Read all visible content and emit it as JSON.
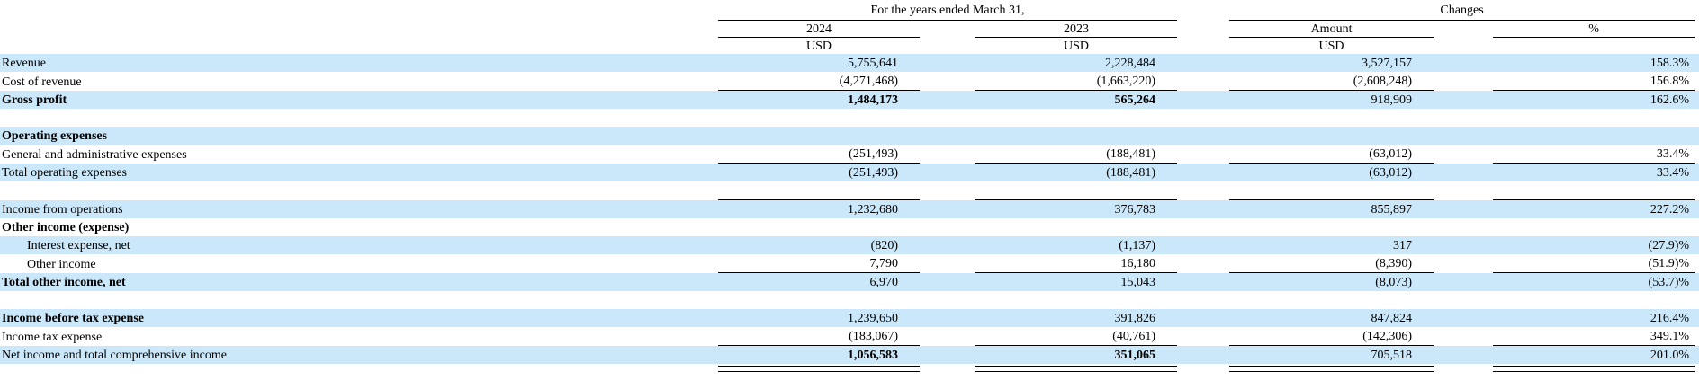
{
  "table": {
    "stripe_color": "#cbe8fa",
    "header": {
      "years_group": "For the years ended March 31,",
      "changes_group": "Changes",
      "col_2024": "2024",
      "col_2023": "2023",
      "col_amount": "Amount",
      "col_percent": "%",
      "currency_2024": "USD",
      "currency_2023": "USD",
      "currency_amount": "USD"
    },
    "rows": [
      {
        "label": "Revenue",
        "v2024": "5,755,641",
        "v2023": "2,228,484",
        "amount": "3,527,157",
        "pct": "158.3%",
        "stripe": true,
        "bold_label": false,
        "bold_values": false,
        "indent": false,
        "rule_below": false,
        "double_below": false
      },
      {
        "label": "Cost of revenue",
        "v2024": "(4,271,468)",
        "v2023": "(1,663,220)",
        "amount": "(2,608,248)",
        "pct": "156.8%",
        "stripe": false,
        "bold_label": false,
        "bold_values": false,
        "indent": false,
        "rule_below": true,
        "double_below": false
      },
      {
        "label": "Gross profit",
        "v2024": "1,484,173",
        "v2023": "565,264",
        "amount": "918,909",
        "pct": "162.6%",
        "stripe": true,
        "bold_label": true,
        "bold_values": true,
        "indent": false,
        "rule_below": false,
        "double_below": false
      },
      {
        "label": "",
        "v2024": "",
        "v2023": "",
        "amount": "",
        "pct": "",
        "stripe": false,
        "bold_label": false,
        "bold_values": false,
        "indent": false,
        "rule_below": false,
        "double_below": false
      },
      {
        "label": "Operating expenses",
        "v2024": "",
        "v2023": "",
        "amount": "",
        "pct": "",
        "stripe": true,
        "bold_label": true,
        "bold_values": false,
        "indent": false,
        "rule_below": false,
        "double_below": false
      },
      {
        "label": "General and administrative expenses",
        "v2024": "(251,493)",
        "v2023": "(188,481)",
        "amount": "(63,012)",
        "pct": "33.4%",
        "stripe": false,
        "bold_label": false,
        "bold_values": false,
        "indent": false,
        "rule_below": true,
        "double_below": false
      },
      {
        "label": "Total operating expenses",
        "v2024": "(251,493)",
        "v2023": "(188,481)",
        "amount": "(63,012)",
        "pct": "33.4%",
        "stripe": true,
        "bold_label": false,
        "bold_values": false,
        "indent": false,
        "rule_below": false,
        "double_below": false
      },
      {
        "label": "",
        "v2024": "",
        "v2023": "",
        "amount": "",
        "pct": "",
        "stripe": false,
        "bold_label": false,
        "bold_values": false,
        "indent": false,
        "rule_below": true,
        "double_below": false
      },
      {
        "label": "Income from operations",
        "v2024": "1,232,680",
        "v2023": "376,783",
        "amount": "855,897",
        "pct": "227.2%",
        "stripe": true,
        "bold_label": false,
        "bold_values": false,
        "indent": false,
        "rule_below": false,
        "double_below": false
      },
      {
        "label": "Other income (expense)",
        "v2024": "",
        "v2023": "",
        "amount": "",
        "pct": "",
        "stripe": false,
        "bold_label": true,
        "bold_values": false,
        "indent": false,
        "rule_below": false,
        "double_below": false
      },
      {
        "label": "Interest expense, net",
        "v2024": "(820)",
        "v2023": "(1,137)",
        "amount": "317",
        "pct": "(27.9)%",
        "stripe": true,
        "bold_label": false,
        "bold_values": false,
        "indent": true,
        "rule_below": false,
        "double_below": false
      },
      {
        "label": "Other income",
        "v2024": "7,790",
        "v2023": "16,180",
        "amount": "(8,390)",
        "pct": "(51.9)%",
        "stripe": false,
        "bold_label": false,
        "bold_values": false,
        "indent": true,
        "rule_below": true,
        "double_below": false
      },
      {
        "label": "Total other income, net",
        "v2024": "6,970",
        "v2023": "15,043",
        "amount": "(8,073)",
        "pct": "(53.7)%",
        "stripe": true,
        "bold_label": true,
        "bold_values": false,
        "indent": false,
        "rule_below": false,
        "double_below": false
      },
      {
        "label": "",
        "v2024": "",
        "v2023": "",
        "amount": "",
        "pct": "",
        "stripe": false,
        "bold_label": false,
        "bold_values": false,
        "indent": false,
        "rule_below": false,
        "double_below": false
      },
      {
        "label": "Income before tax expense",
        "v2024": "1,239,650",
        "v2023": "391,826",
        "amount": "847,824",
        "pct": "216.4%",
        "stripe": true,
        "bold_label": true,
        "bold_values": false,
        "indent": false,
        "rule_below": false,
        "double_below": false
      },
      {
        "label": "Income tax expense",
        "v2024": "(183,067)",
        "v2023": "(40,761)",
        "amount": "(142,306)",
        "pct": "349.1%",
        "stripe": false,
        "bold_label": false,
        "bold_values": false,
        "indent": false,
        "rule_below": true,
        "double_below": false
      },
      {
        "label": "Net income and total comprehensive income",
        "v2024": "1,056,583",
        "v2023": "351,065",
        "amount": "705,518",
        "pct": "201.0%",
        "stripe": true,
        "bold_label": false,
        "bold_values": true,
        "indent": false,
        "rule_below": false,
        "double_below": true
      }
    ]
  }
}
